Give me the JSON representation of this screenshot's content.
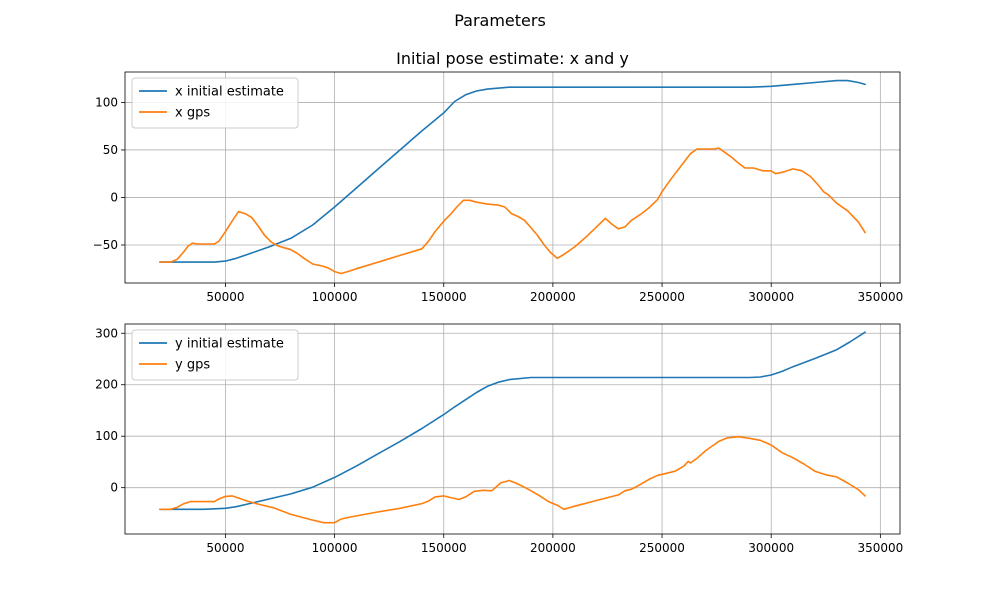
{
  "figure": {
    "suptitle": "Parameters"
  },
  "chart_data": [
    {
      "type": "line",
      "title": "Initial pose estimate: x and y",
      "xlabel": "",
      "ylabel": "",
      "xlim": [
        4000,
        359000
      ],
      "ylim": [
        -90,
        132
      ],
      "xticks": [
        50000,
        100000,
        150000,
        200000,
        250000,
        300000,
        350000
      ],
      "xtick_labels": [
        "50000",
        "100000",
        "150000",
        "200000",
        "250000",
        "300000",
        "350000"
      ],
      "yticks": [
        -50,
        0,
        50,
        100
      ],
      "ytick_labels": [
        "−50",
        "0",
        "50",
        "100"
      ],
      "grid": true,
      "legend_position": "upper-left",
      "series": [
        {
          "name": "x initial estimate",
          "color": "#1f77b4",
          "points": [
            [
              20000,
              -68
            ],
            [
              30000,
              -68
            ],
            [
              40000,
              -68
            ],
            [
              45000,
              -68
            ],
            [
              50000,
              -67
            ],
            [
              55000,
              -64
            ],
            [
              60000,
              -60
            ],
            [
              70000,
              -52
            ],
            [
              80000,
              -43
            ],
            [
              90000,
              -29
            ],
            [
              100000,
              -10
            ],
            [
              110000,
              10
            ],
            [
              120000,
              30
            ],
            [
              130000,
              50
            ],
            [
              140000,
              70
            ],
            [
              150000,
              89
            ],
            [
              155000,
              101
            ],
            [
              160000,
              108
            ],
            [
              165000,
              112
            ],
            [
              170000,
              114
            ],
            [
              180000,
              116
            ],
            [
              200000,
              116
            ],
            [
              250000,
              116
            ],
            [
              290000,
              116
            ],
            [
              300000,
              117
            ],
            [
              310000,
              119
            ],
            [
              320000,
              121
            ],
            [
              330000,
              123
            ],
            [
              335000,
              123
            ],
            [
              340000,
              121
            ],
            [
              343000,
              119
            ]
          ]
        },
        {
          "name": "x gps",
          "color": "#ff7f0e",
          "points": [
            [
              20000,
              -68
            ],
            [
              25000,
              -68
            ],
            [
              28000,
              -65
            ],
            [
              31000,
              -57
            ],
            [
              33000,
              -51
            ],
            [
              35000,
              -48
            ],
            [
              37000,
              -49
            ],
            [
              40000,
              -49
            ],
            [
              45000,
              -49
            ],
            [
              47000,
              -46
            ],
            [
              50000,
              -36
            ],
            [
              53000,
              -25
            ],
            [
              56000,
              -15
            ],
            [
              59000,
              -17
            ],
            [
              62000,
              -21
            ],
            [
              65000,
              -30
            ],
            [
              68000,
              -40
            ],
            [
              71000,
              -47
            ],
            [
              74000,
              -51
            ],
            [
              77000,
              -53
            ],
            [
              80000,
              -55
            ],
            [
              83000,
              -59
            ],
            [
              86000,
              -64
            ],
            [
              90000,
              -70
            ],
            [
              94000,
              -72
            ],
            [
              97000,
              -74
            ],
            [
              100000,
              -78
            ],
            [
              103000,
              -80
            ],
            [
              106000,
              -78
            ],
            [
              110000,
              -75
            ],
            [
              120000,
              -68
            ],
            [
              130000,
              -61
            ],
            [
              140000,
              -54
            ],
            [
              143000,
              -46
            ],
            [
              146000,
              -36
            ],
            [
              150000,
              -25
            ],
            [
              153000,
              -18
            ],
            [
              156000,
              -10
            ],
            [
              159000,
              -3
            ],
            [
              162000,
              -3
            ],
            [
              165000,
              -5
            ],
            [
              170000,
              -7
            ],
            [
              175000,
              -8
            ],
            [
              178000,
              -10
            ],
            [
              181000,
              -17
            ],
            [
              184000,
              -20
            ],
            [
              187000,
              -24
            ],
            [
              190000,
              -32
            ],
            [
              193000,
              -40
            ],
            [
              196000,
              -50
            ],
            [
              199000,
              -58
            ],
            [
              202000,
              -64
            ],
            [
              205000,
              -60
            ],
            [
              210000,
              -52
            ],
            [
              215000,
              -42
            ],
            [
              220000,
              -31
            ],
            [
              224000,
              -22
            ],
            [
              227000,
              -28
            ],
            [
              230000,
              -33
            ],
            [
              233000,
              -31
            ],
            [
              236000,
              -24
            ],
            [
              240000,
              -18
            ],
            [
              244000,
              -11
            ],
            [
              248000,
              -2
            ],
            [
              250000,
              6
            ],
            [
              253000,
              16
            ],
            [
              256000,
              25
            ],
            [
              260000,
              37
            ],
            [
              263000,
              46
            ],
            [
              266000,
              51
            ],
            [
              270000,
              51
            ],
            [
              274000,
              51
            ],
            [
              276000,
              52
            ],
            [
              279000,
              47
            ],
            [
              282000,
              42
            ],
            [
              285000,
              36
            ],
            [
              288000,
              31
            ],
            [
              292000,
              31
            ],
            [
              296000,
              28
            ],
            [
              300000,
              28
            ],
            [
              302000,
              25
            ],
            [
              306000,
              27
            ],
            [
              310000,
              30
            ],
            [
              314000,
              28
            ],
            [
              318000,
              22
            ],
            [
              322000,
              12
            ],
            [
              324000,
              6
            ],
            [
              326000,
              3
            ],
            [
              330000,
              -6
            ],
            [
              335000,
              -14
            ],
            [
              340000,
              -26
            ],
            [
              343000,
              -37
            ]
          ]
        }
      ]
    },
    {
      "type": "line",
      "title": "",
      "xlabel": "",
      "ylabel": "",
      "xlim": [
        4000,
        359000
      ],
      "ylim": [
        -90,
        318
      ],
      "xticks": [
        50000,
        100000,
        150000,
        200000,
        250000,
        300000,
        350000
      ],
      "xtick_labels": [
        "50000",
        "100000",
        "150000",
        "200000",
        "250000",
        "300000",
        "350000"
      ],
      "yticks": [
        0,
        100,
        200,
        300
      ],
      "ytick_labels": [
        "0",
        "100",
        "200",
        "300"
      ],
      "grid": true,
      "legend_position": "upper-left",
      "series": [
        {
          "name": "y initial estimate",
          "color": "#1f77b4",
          "points": [
            [
              20000,
              -42
            ],
            [
              30000,
              -42
            ],
            [
              40000,
              -42
            ],
            [
              50000,
              -40
            ],
            [
              55000,
              -37
            ],
            [
              60000,
              -32
            ],
            [
              70000,
              -22
            ],
            [
              80000,
              -12
            ],
            [
              90000,
              1
            ],
            [
              100000,
              20
            ],
            [
              110000,
              42
            ],
            [
              120000,
              66
            ],
            [
              130000,
              90
            ],
            [
              140000,
              115
            ],
            [
              150000,
              142
            ],
            [
              155000,
              157
            ],
            [
              160000,
              171
            ],
            [
              165000,
              185
            ],
            [
              170000,
              197
            ],
            [
              175000,
              205
            ],
            [
              180000,
              210
            ],
            [
              190000,
              214
            ],
            [
              200000,
              214
            ],
            [
              250000,
              214
            ],
            [
              290000,
              214
            ],
            [
              295000,
              215
            ],
            [
              300000,
              219
            ],
            [
              305000,
              226
            ],
            [
              310000,
              235
            ],
            [
              320000,
              251
            ],
            [
              330000,
              268
            ],
            [
              336000,
              283
            ],
            [
              343000,
              302
            ]
          ]
        },
        {
          "name": "y gps",
          "color": "#ff7f0e",
          "points": [
            [
              20000,
              -42
            ],
            [
              25000,
              -42
            ],
            [
              28000,
              -38
            ],
            [
              31000,
              -31
            ],
            [
              34000,
              -27
            ],
            [
              37000,
              -27
            ],
            [
              40000,
              -27
            ],
            [
              45000,
              -27
            ],
            [
              47000,
              -22
            ],
            [
              50000,
              -17
            ],
            [
              53000,
              -16
            ],
            [
              56000,
              -20
            ],
            [
              60000,
              -26
            ],
            [
              65000,
              -32
            ],
            [
              72000,
              -39
            ],
            [
              80000,
              -52
            ],
            [
              90000,
              -63
            ],
            [
              95000,
              -68
            ],
            [
              100000,
              -68
            ],
            [
              103000,
              -61
            ],
            [
              106000,
              -58
            ],
            [
              120000,
              -47
            ],
            [
              130000,
              -40
            ],
            [
              140000,
              -31
            ],
            [
              143000,
              -26
            ],
            [
              146000,
              -18
            ],
            [
              150000,
              -16
            ],
            [
              153000,
              -19
            ],
            [
              157000,
              -23
            ],
            [
              160000,
              -18
            ],
            [
              164000,
              -7
            ],
            [
              168000,
              -5
            ],
            [
              172000,
              -6
            ],
            [
              176000,
              9
            ],
            [
              180000,
              14
            ],
            [
              183000,
              9
            ],
            [
              186000,
              3
            ],
            [
              190000,
              -6
            ],
            [
              194000,
              -16
            ],
            [
              198000,
              -27
            ],
            [
              202000,
              -34
            ],
            [
              205000,
              -42
            ],
            [
              210000,
              -36
            ],
            [
              220000,
              -25
            ],
            [
              230000,
              -14
            ],
            [
              233000,
              -6
            ],
            [
              236000,
              -3
            ],
            [
              240000,
              6
            ],
            [
              244000,
              16
            ],
            [
              248000,
              24
            ],
            [
              252000,
              28
            ],
            [
              256000,
              32
            ],
            [
              260000,
              42
            ],
            [
              262000,
              51
            ],
            [
              263000,
              48
            ],
            [
              266000,
              57
            ],
            [
              270000,
              72
            ],
            [
              276000,
              90
            ],
            [
              280000,
              97
            ],
            [
              285000,
              99
            ],
            [
              290000,
              96
            ],
            [
              295000,
              92
            ],
            [
              300000,
              83
            ],
            [
              305000,
              68
            ],
            [
              310000,
              58
            ],
            [
              315000,
              46
            ],
            [
              320000,
              32
            ],
            [
              325000,
              25
            ],
            [
              330000,
              21
            ],
            [
              335000,
              9
            ],
            [
              340000,
              -4
            ],
            [
              343000,
              -16
            ]
          ]
        }
      ]
    }
  ]
}
